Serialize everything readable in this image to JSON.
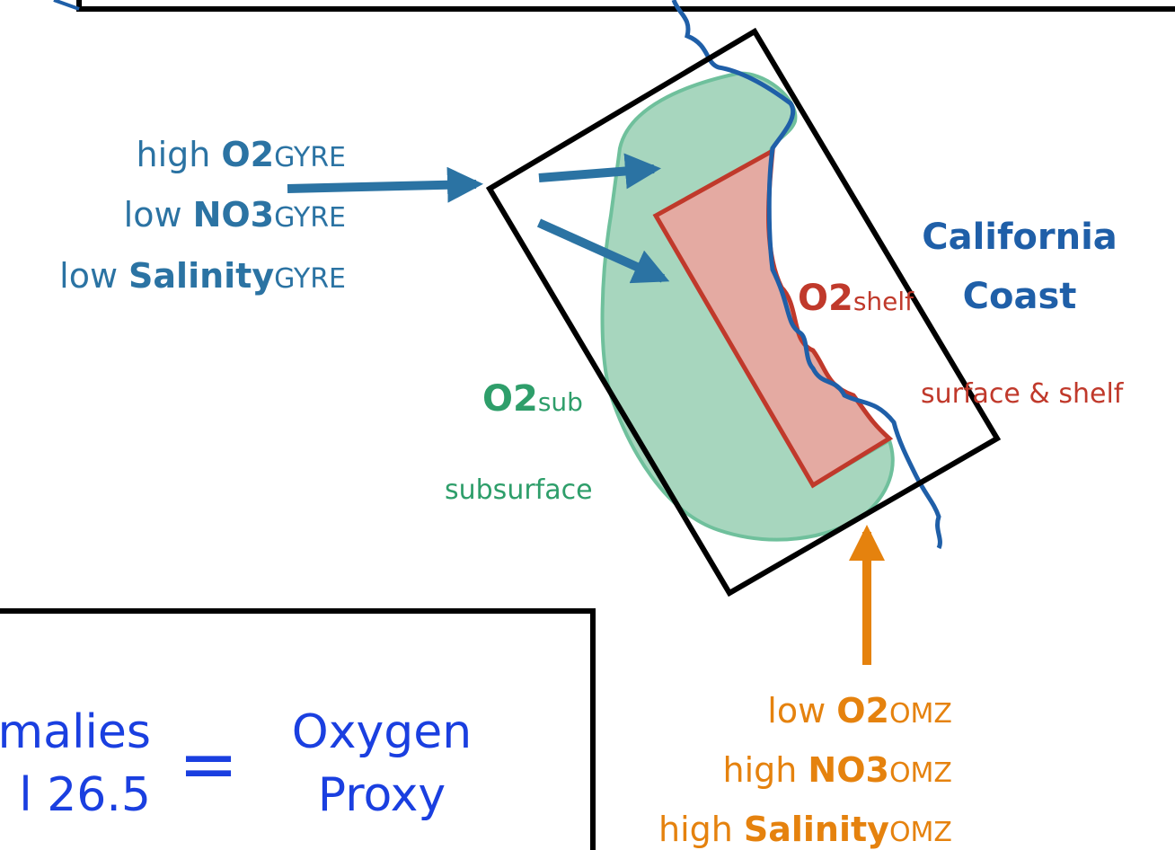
{
  "gyre_labels": [
    {
      "qualifier": "high",
      "variable": "O2",
      "subscript": "GYRE"
    },
    {
      "qualifier": "low",
      "variable": "NO3",
      "subscript": "GYRE"
    },
    {
      "qualifier": "low",
      "variable": "Salinity",
      "subscript": "GYRE"
    }
  ],
  "omz_labels": [
    {
      "qualifier": "low",
      "variable": "O2",
      "subscript": "OMZ"
    },
    {
      "qualifier": "high",
      "variable": "NO3",
      "subscript": "OMZ"
    },
    {
      "qualifier": "high",
      "variable": "Salinity",
      "subscript": "OMZ"
    }
  ],
  "coast_label": [
    "California",
    "Coast"
  ],
  "shelf": {
    "variable": "O2",
    "subscript": "shelf",
    "description": "surface & shelf"
  },
  "subsurface": {
    "variable": "O2",
    "subscript": "sub",
    "description": "subsurface"
  },
  "equation": {
    "left": [
      "malies",
      "l 26.5"
    ],
    "operator": "=",
    "right": [
      "Oxygen",
      "Proxy"
    ]
  }
}
